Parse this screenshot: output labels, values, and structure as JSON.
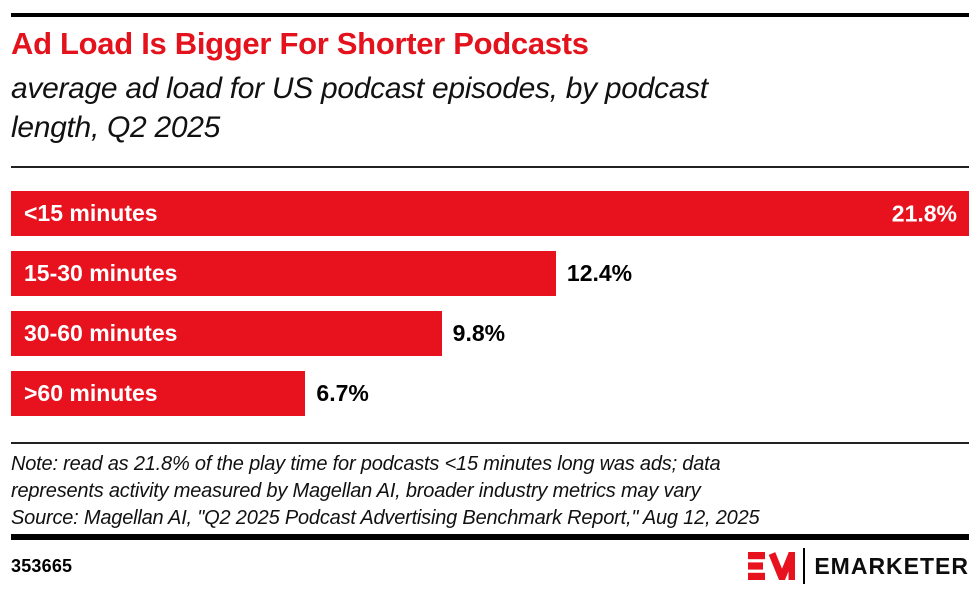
{
  "header": {
    "title": "Ad Load Is Bigger For Shorter Podcasts",
    "subtitle_lines": [
      "average ad load for US podcast episodes, by podcast",
      "length, Q2 2025"
    ]
  },
  "chart_data": {
    "type": "bar",
    "orientation": "horizontal",
    "title": "Ad Load Is Bigger For Shorter Podcasts",
    "subtitle": "average ad load for US podcast episodes, by podcast length, Q2 2025",
    "categories": [
      "<15 minutes",
      "15-30 minutes",
      "30-60 minutes",
      ">60 minutes"
    ],
    "values": [
      21.8,
      12.4,
      9.8,
      6.7
    ],
    "value_labels": [
      "21.8%",
      "12.4%",
      "9.8%",
      "6.7%"
    ],
    "value_suffix": "%",
    "xlim": [
      0,
      21.8
    ],
    "bar_color": "#E8121F",
    "grid": false,
    "legend": false
  },
  "footnote": {
    "note_lines": [
      "Note: read as 21.8% of the play time for podcasts <15 minutes long was ads; data",
      "represents activity measured by Magellan AI, broader industry metrics may vary"
    ],
    "source": "Source: Magellan AI, \"Q2 2025 Podcast Advertising Benchmark Report,\" Aug 12, 2025"
  },
  "footer": {
    "chart_id": "353665",
    "brand": "EMARKETER",
    "brand_color": "#E8121F"
  }
}
